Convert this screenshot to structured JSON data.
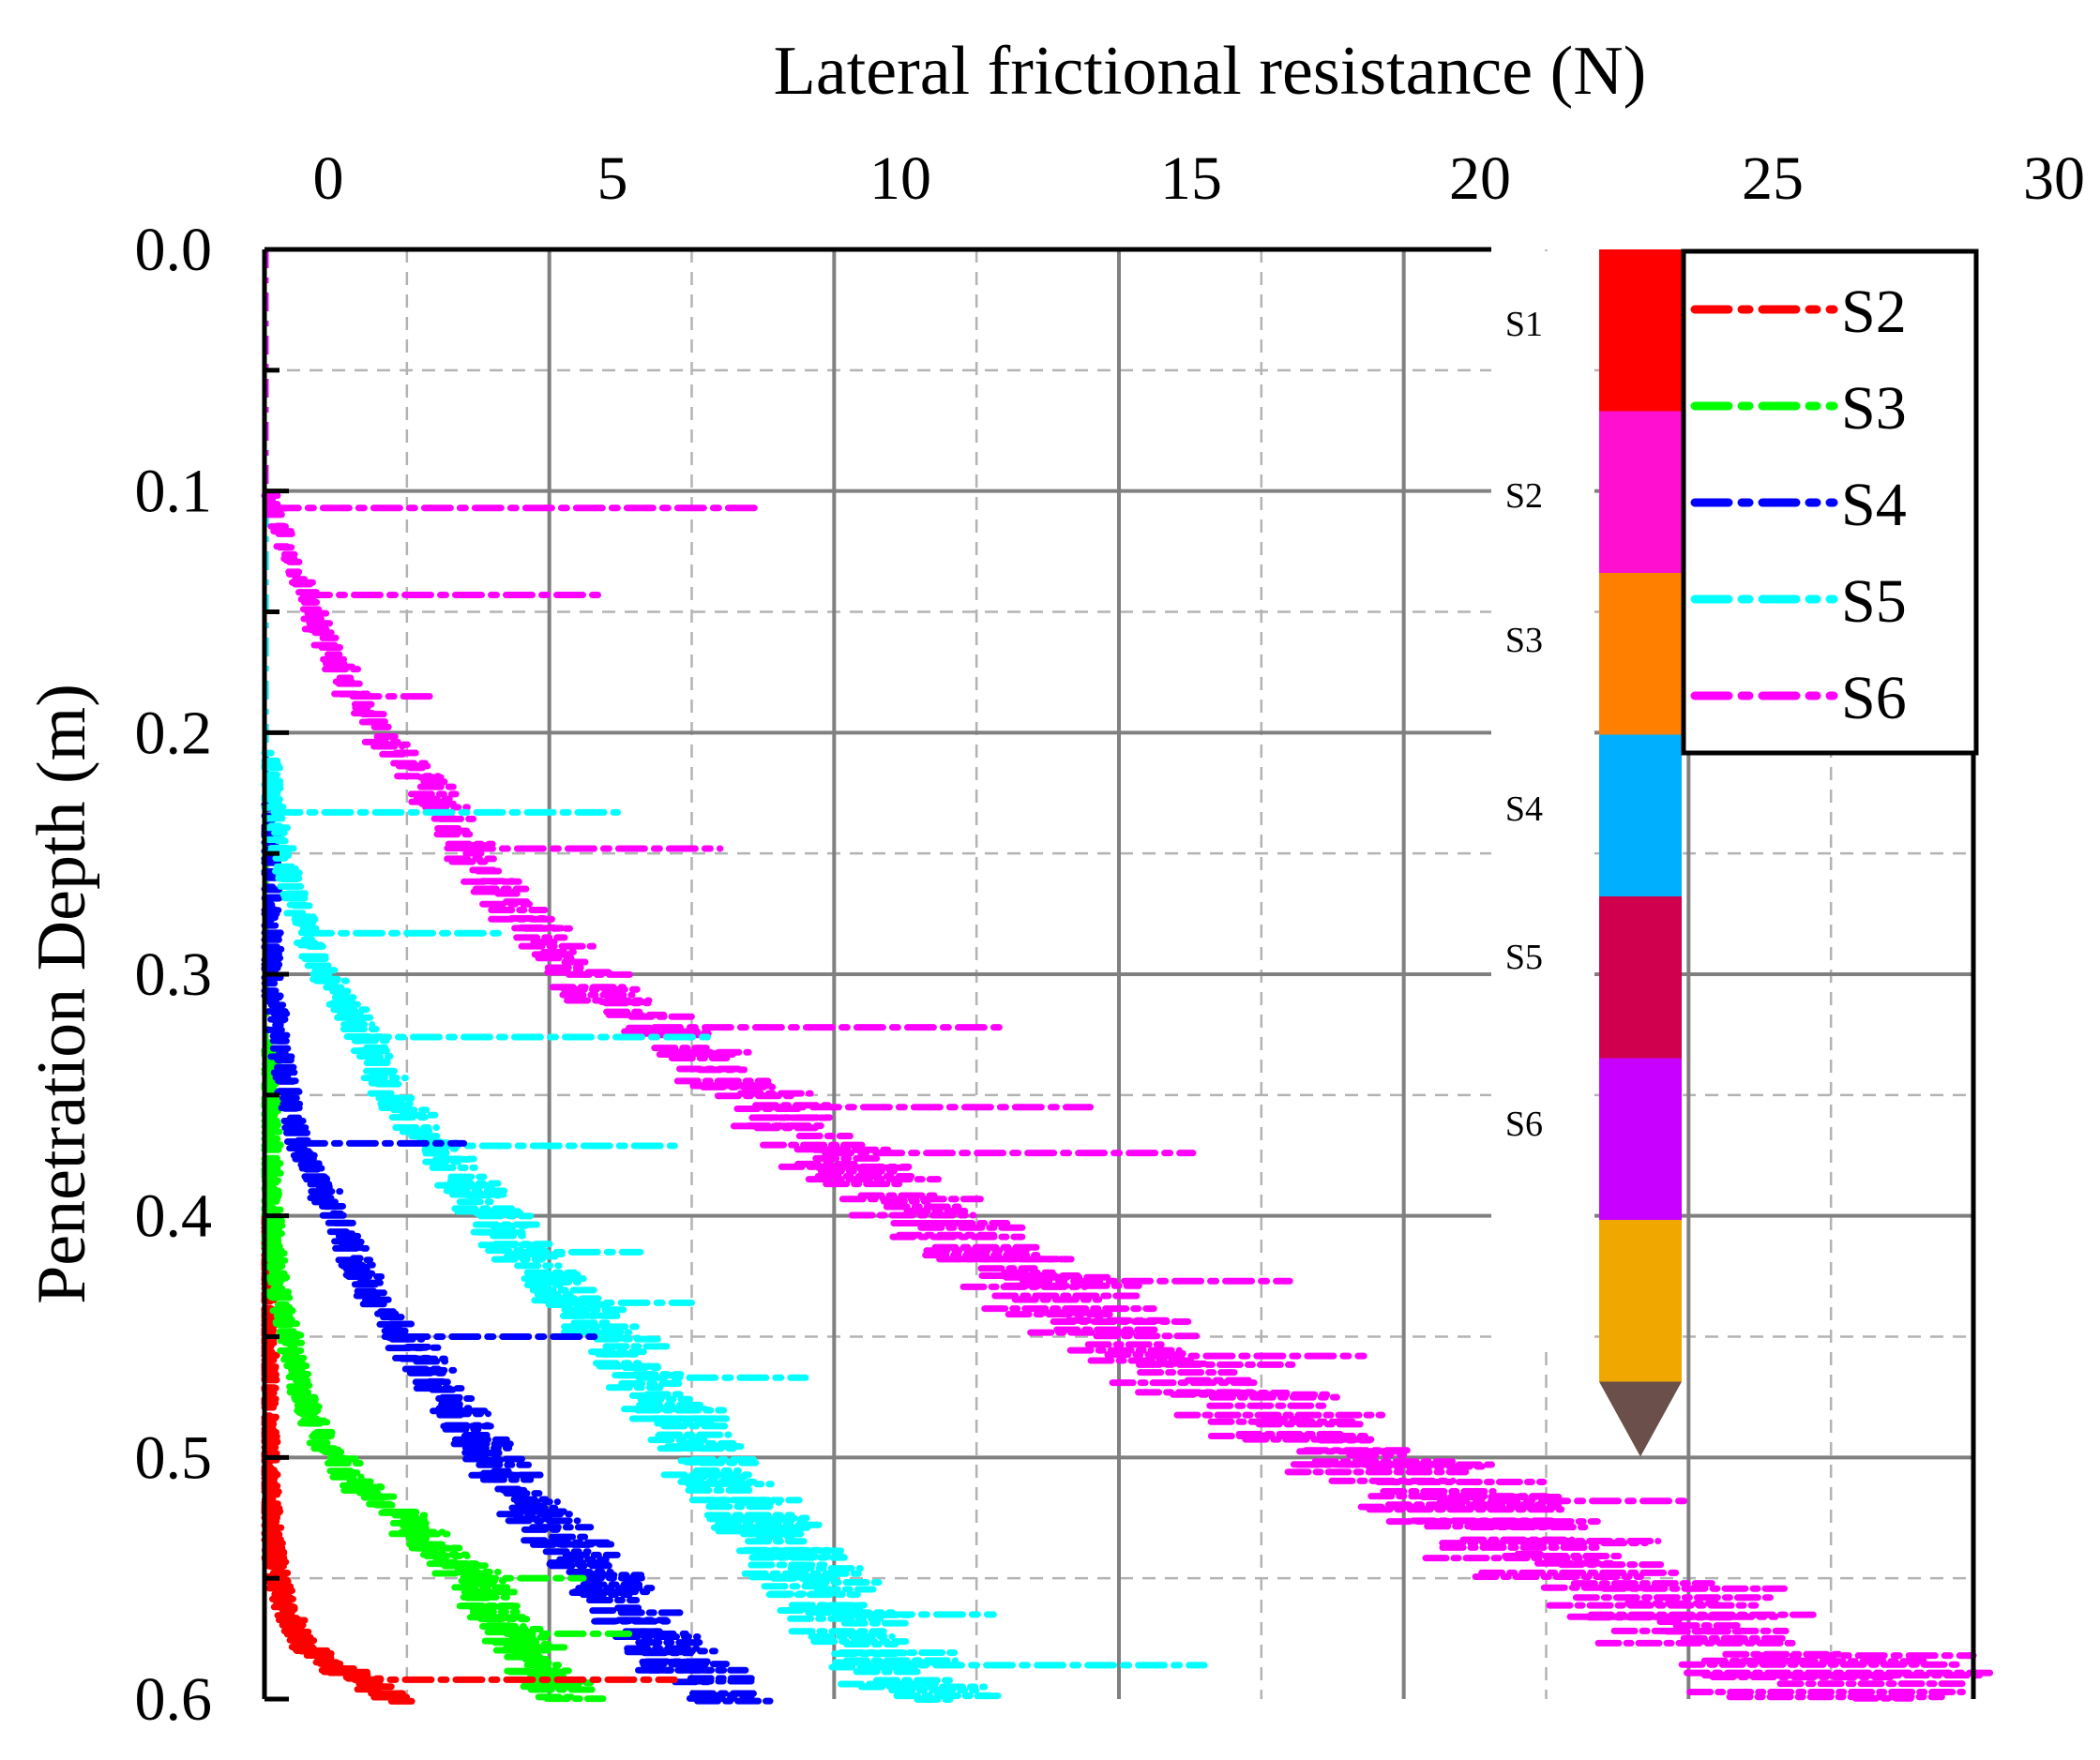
{
  "chart_data": {
    "type": "scatter",
    "title": "",
    "xlabel": "Lateral frictional resistance (N)",
    "ylabel": "Penetration Depth (m)",
    "xlim": [
      0,
      30
    ],
    "ylim": [
      0.6,
      0.0
    ],
    "x_axis_position": "top",
    "x_ticks": [
      0,
      5,
      10,
      15,
      20,
      25,
      30
    ],
    "x_tick_labels": [
      "0",
      "5",
      "10",
      "15",
      "20",
      "25",
      "30"
    ],
    "y_ticks": [
      0.0,
      0.1,
      0.2,
      0.3,
      0.4,
      0.5,
      0.6
    ],
    "y_tick_labels": [
      "0.0",
      "0.1",
      "0.2",
      "0.3",
      "0.4",
      "0.5",
      "0.6"
    ],
    "grid": true,
    "legend_position": "top-right",
    "series": [
      {
        "name": "S2",
        "color": "#ff0000",
        "x": [
          0.02,
          0.02,
          0.03,
          0.04,
          0.05,
          0.07,
          0.1,
          0.15,
          0.22,
          0.32,
          0.5,
          0.75,
          1.05,
          1.4,
          1.85,
          2.4
        ],
        "y": [
          0.4,
          0.44,
          0.47,
          0.49,
          0.51,
          0.52,
          0.53,
          0.54,
          0.55,
          0.56,
          0.57,
          0.58,
          0.585,
          0.59,
          0.595,
          0.6
        ]
      },
      {
        "name": "S3",
        "color": "#00ff00",
        "x": [
          0.05,
          0.08,
          0.1,
          0.2,
          0.4,
          0.6,
          0.9,
          1.2,
          1.6,
          2.1,
          2.6,
          3.1,
          3.6,
          4.1,
          4.6,
          5.2
        ],
        "y": [
          0.33,
          0.37,
          0.4,
          0.43,
          0.45,
          0.47,
          0.49,
          0.5,
          0.51,
          0.52,
          0.53,
          0.54,
          0.55,
          0.57,
          0.58,
          0.6
        ]
      },
      {
        "name": "S4",
        "color": "#0000ff",
        "x": [
          0.05,
          0.1,
          0.3,
          0.6,
          1.0,
          1.4,
          1.8,
          2.4,
          3.0,
          3.6,
          4.2,
          5.0,
          5.8,
          6.6,
          7.4,
          7.8
        ],
        "y": [
          0.23,
          0.3,
          0.34,
          0.37,
          0.39,
          0.41,
          0.43,
          0.45,
          0.47,
          0.49,
          0.51,
          0.53,
          0.55,
          0.57,
          0.59,
          0.6
        ]
      },
      {
        "name": "S5",
        "color": "#00ffff",
        "x": [
          0.05,
          0.2,
          0.5,
          1.0,
          1.6,
          2.2,
          2.9,
          3.6,
          4.3,
          5.1,
          6.0,
          7.0,
          8.0,
          9.1,
          10.2,
          11.5
        ],
        "y": [
          0.21,
          0.24,
          0.27,
          0.3,
          0.32,
          0.35,
          0.37,
          0.39,
          0.41,
          0.43,
          0.45,
          0.48,
          0.51,
          0.54,
          0.57,
          0.6
        ]
      },
      {
        "name": "S6",
        "color": "#ff00ff",
        "x": [
          0.05,
          0.3,
          0.8,
          1.4,
          2.0,
          2.8,
          3.6,
          4.6,
          6.0,
          7.4,
          9.0,
          10.8,
          12.8,
          15.0,
          17.4,
          20.0,
          22.4,
          25.0,
          28.0
        ],
        "y": [
          0.1,
          0.12,
          0.15,
          0.18,
          0.2,
          0.22,
          0.25,
          0.28,
          0.31,
          0.33,
          0.36,
          0.39,
          0.42,
          0.45,
          0.48,
          0.51,
          0.54,
          0.57,
          0.6
        ]
      }
    ],
    "spikes": [
      {
        "series": "S6",
        "y": 0.107,
        "x_max": 8.6
      },
      {
        "series": "S6",
        "y": 0.143,
        "x_max": 6.0
      },
      {
        "series": "S6",
        "y": 0.185,
        "x_max": 3.0
      },
      {
        "series": "S6",
        "y": 0.248,
        "x_max": 8.0
      },
      {
        "series": "S6",
        "y": 0.322,
        "x_max": 13.0
      },
      {
        "series": "S6",
        "y": 0.355,
        "x_max": 14.5
      },
      {
        "series": "S6",
        "y": 0.374,
        "x_max": 16.3
      },
      {
        "series": "S6",
        "y": 0.427,
        "x_max": 18.0
      },
      {
        "series": "S6",
        "y": 0.458,
        "x_max": 19.3
      },
      {
        "series": "S6",
        "y": 0.499,
        "x_max": 20.0
      },
      {
        "series": "S6",
        "y": 0.518,
        "x_max": 25.0
      },
      {
        "series": "S6",
        "y": 0.54,
        "x_max": 22.0
      },
      {
        "series": "S6",
        "y": 0.568,
        "x_max": 24.5
      },
      {
        "series": "S6",
        "y": 0.582,
        "x_max": 30.0
      },
      {
        "series": "S5",
        "y": 0.233,
        "x_max": 6.2
      },
      {
        "series": "S5",
        "y": 0.283,
        "x_max": 4.2
      },
      {
        "series": "S5",
        "y": 0.326,
        "x_max": 7.8
      },
      {
        "series": "S5",
        "y": 0.371,
        "x_max": 7.2
      },
      {
        "series": "S5",
        "y": 0.415,
        "x_max": 6.6
      },
      {
        "series": "S5",
        "y": 0.436,
        "x_max": 7.5
      },
      {
        "series": "S5",
        "y": 0.467,
        "x_max": 9.5
      },
      {
        "series": "S5",
        "y": 0.565,
        "x_max": 12.8
      },
      {
        "series": "S5",
        "y": 0.586,
        "x_max": 16.5
      },
      {
        "series": "S4",
        "y": 0.37,
        "x_max": 3.5
      },
      {
        "series": "S4",
        "y": 0.45,
        "x_max": 5.8
      },
      {
        "series": "S4",
        "y": 0.573,
        "x_max": 7.4
      },
      {
        "series": "S3",
        "y": 0.55,
        "x_max": 5.6
      },
      {
        "series": "S3",
        "y": 0.573,
        "x_max": 6.4
      },
      {
        "series": "S2",
        "y": 0.592,
        "x_max": 7.2
      }
    ],
    "probe_segments": [
      {
        "label": "S1",
        "color": "#ff0000"
      },
      {
        "label": "S2",
        "color": "#ff10d0"
      },
      {
        "label": "S3",
        "color": "#ff8000"
      },
      {
        "label": "S4",
        "color": "#00b0ff"
      },
      {
        "label": "S5",
        "color": "#d0004e"
      },
      {
        "label": "S6",
        "color": "#c800ff"
      },
      {
        "label": "",
        "color": "#f0a800"
      }
    ],
    "probe_tip_color": "#6b4f4a"
  }
}
